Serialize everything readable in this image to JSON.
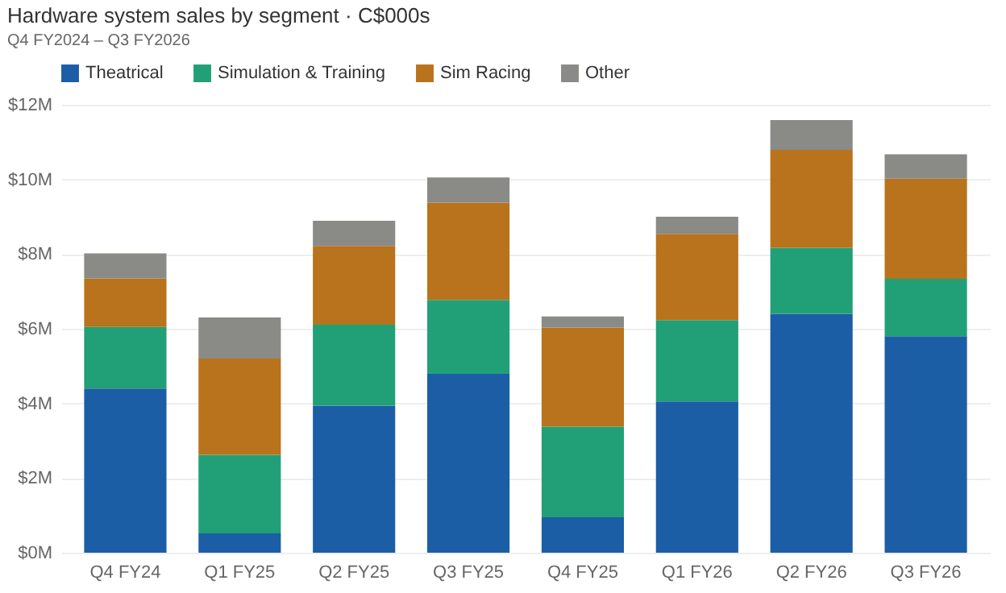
{
  "chart_data": {
    "type": "bar",
    "title": "Hardware system sales by segment · C$000s",
    "subtitle": "Q4 FY2024 – Q3 FY2026",
    "categories": [
      "Q4 FY24",
      "Q1 FY25",
      "Q2 FY25",
      "Q3 FY25",
      "Q4 FY25",
      "Q1 FY26",
      "Q2 FY26",
      "Q3 FY26"
    ],
    "stacked": true,
    "series": [
      {
        "name": "Theatrical",
        "color": "#1b5ea6",
        "values": [
          4.4,
          0.52,
          3.94,
          4.79,
          0.95,
          4.05,
          6.4,
          5.8
        ]
      },
      {
        "name": "Simulation & Training",
        "color": "#21a077",
        "values": [
          1.65,
          2.1,
          2.17,
          1.98,
          2.43,
          2.18,
          1.77,
          1.54
        ]
      },
      {
        "name": "Sim Racing",
        "color": "#b8731c",
        "values": [
          1.3,
          2.58,
          2.11,
          2.61,
          2.65,
          2.31,
          2.62,
          2.68
        ]
      },
      {
        "name": "Other",
        "color": "#8a8a86",
        "values": [
          0.67,
          1.1,
          0.67,
          0.67,
          0.3,
          0.46,
          0.8,
          0.65
        ]
      }
    ],
    "ylim": [
      0,
      12
    ],
    "yticks": [
      {
        "value": 0,
        "label": "$0M"
      },
      {
        "value": 2,
        "label": "$2M"
      },
      {
        "value": 4,
        "label": "$4M"
      },
      {
        "value": 6,
        "label": "$6M"
      },
      {
        "value": 8,
        "label": "$8M"
      },
      {
        "value": 10,
        "label": "$10M"
      },
      {
        "value": 12,
        "label": "$12M"
      }
    ],
    "grid": "y",
    "legend": "top left"
  }
}
